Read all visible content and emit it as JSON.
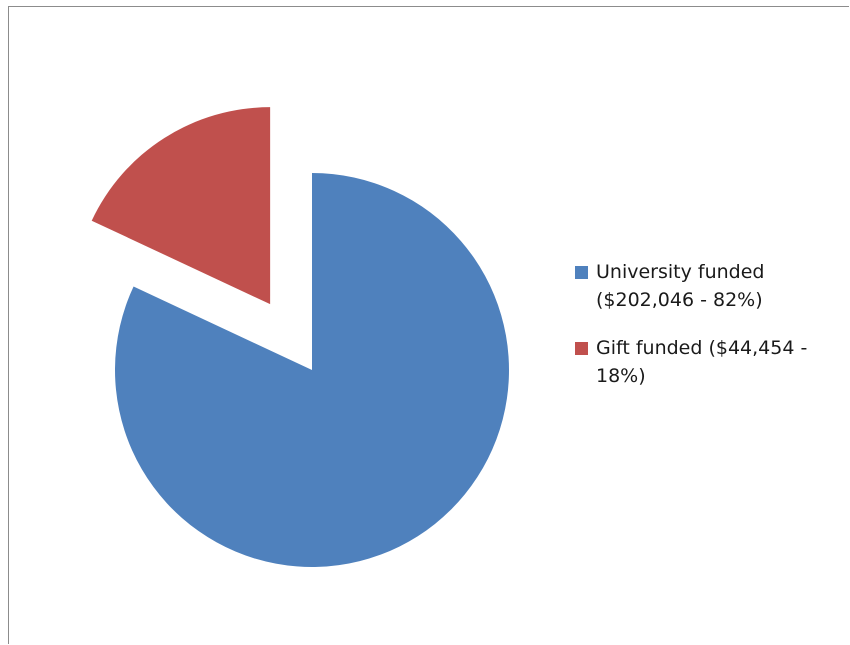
{
  "chart_data": {
    "type": "pie",
    "title": "",
    "slices": [
      {
        "label": "University funded ($202,046 - 82%)",
        "value": 202046,
        "percent": 82,
        "color": "#4f81bd",
        "exploded": false
      },
      {
        "label": "Gift funded ($44,454 - 18%)",
        "value": 44454,
        "percent": 18,
        "color": "#c0504d",
        "exploded": true
      }
    ],
    "legend_position": "right"
  }
}
